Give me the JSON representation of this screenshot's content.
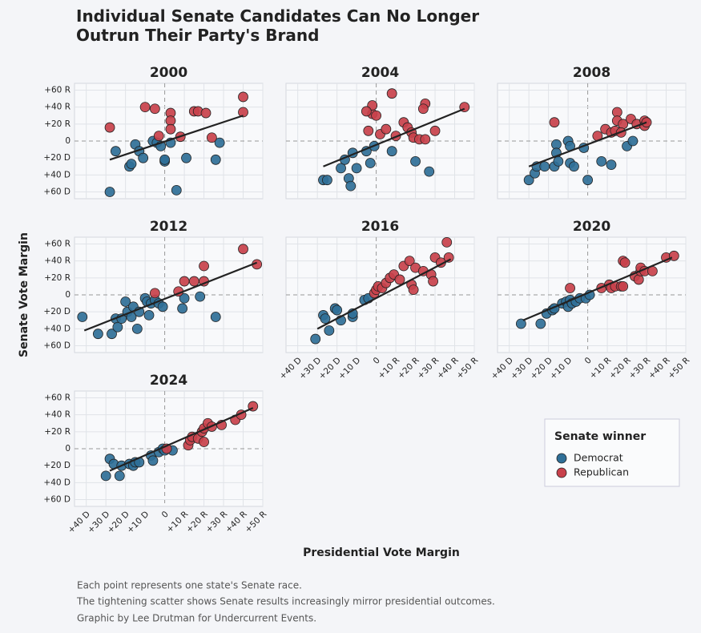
{
  "title": "Individual Senate Candidates Can No Longer Outrun Their Party's Brand",
  "xlabel": "Presidential Vote Margin",
  "ylabel": "Senate Vote Margin",
  "notes": [
    "Each point represents one state's Senate race.",
    "The tightening scatter shows Senate results increasingly mirror presidential outcomes.",
    "Graphic by Lee Drutman for Undercurrent Events."
  ],
  "legend": {
    "title": "Senate winner",
    "entries": [
      {
        "name": "Democrat",
        "color": "#2f6f97"
      },
      {
        "name": "Republican",
        "color": "#c8414b"
      }
    ]
  },
  "axes": {
    "xlim": [
      -46,
      50
    ],
    "ylim": [
      -68,
      68
    ],
    "grid": true,
    "xticks": [
      {
        "value": -40,
        "label": "+40 D"
      },
      {
        "value": -30,
        "label": "+30 D"
      },
      {
        "value": -20,
        "label": "+20 D"
      },
      {
        "value": -10,
        "label": "+10 D"
      },
      0,
      {
        "value": 10,
        "label": "+10 R"
      },
      {
        "value": 20,
        "label": "+20 R"
      },
      {
        "value": 30,
        "label": "+30 R"
      },
      {
        "value": 40,
        "label": "+40 R"
      },
      {
        "value": 50,
        "label": "+50 R"
      }
    ],
    "yticks": [
      {
        "value": 60,
        "label": "+60 R"
      },
      {
        "value": 40,
        "label": "+40 R"
      },
      {
        "value": 20,
        "label": "+20 R"
      },
      0,
      {
        "value": -20,
        "label": "+20 D"
      },
      {
        "value": -40,
        "label": "+40 D"
      },
      {
        "value": -60,
        "label": "+60 D"
      }
    ]
  },
  "chart_data": [
    {
      "type": "scatter",
      "title": "2000",
      "series": [
        {
          "x": [
            -28,
            -25,
            -18,
            -17,
            -15,
            -13,
            -11,
            -6,
            -4,
            -2,
            0,
            0,
            3,
            6,
            11,
            26,
            28
          ],
          "values": [
            -60,
            -12,
            -30,
            -27,
            -4,
            -12,
            -20,
            0,
            -2,
            -6,
            -24,
            -22,
            -2,
            -58,
            -20,
            -22,
            -2
          ]
        },
        {
          "x": [
            -28,
            -10,
            -5,
            -3,
            3,
            3,
            3,
            8,
            15,
            17,
            21,
            24,
            40,
            40
          ],
          "values": [
            16,
            40,
            38,
            6,
            33,
            24,
            14,
            5,
            35,
            35,
            33,
            4,
            52,
            34
          ]
        }
      ],
      "trend": {
        "x": [
          -28,
          40
        ],
        "y": [
          -22,
          30
        ]
      }
    },
    {
      "type": "scatter",
      "title": "2004",
      "series": [
        {
          "x": [
            -27,
            -25,
            -18,
            -16,
            -14,
            -13,
            -12,
            -10,
            -5,
            -3,
            -1,
            8,
            20,
            27
          ],
          "values": [
            -46,
            -46,
            -32,
            -22,
            -44,
            -53,
            -14,
            -32,
            -12,
            -26,
            -6,
            -12,
            -24,
            -36
          ]
        },
        {
          "x": [
            -2,
            -2,
            -4,
            -5,
            0,
            2,
            5,
            8,
            10,
            14,
            16,
            18,
            19,
            22,
            25,
            25,
            24,
            30,
            45
          ],
          "values": [
            32,
            42,
            12,
            35,
            30,
            8,
            14,
            56,
            6,
            22,
            16,
            10,
            4,
            2,
            2,
            44,
            38,
            12,
            40
          ]
        }
      ],
      "trend": {
        "x": [
          -27,
          45
        ],
        "y": [
          -30,
          38
        ]
      }
    },
    {
      "type": "scatter",
      "title": "2008",
      "series": [
        {
          "x": [
            -30,
            -27,
            -26,
            -22,
            -17,
            -16,
            -16,
            -15,
            -10,
            -9,
            -9,
            -7,
            -2,
            0,
            7,
            12,
            20,
            23
          ],
          "values": [
            -46,
            -38,
            -30,
            -30,
            -30,
            -4,
            -14,
            -24,
            0,
            -6,
            -26,
            -30,
            -8,
            -46,
            -24,
            -28,
            -6,
            0
          ]
        },
        {
          "x": [
            -17,
            5,
            9,
            12,
            14,
            15,
            15,
            18,
            17,
            22,
            25,
            29,
            29,
            30
          ],
          "values": [
            22,
            6,
            14,
            10,
            12,
            34,
            24,
            20,
            10,
            26,
            20,
            24,
            18,
            22
          ]
        }
      ],
      "trend": {
        "x": [
          -30,
          30
        ],
        "y": [
          -30,
          22
        ]
      }
    },
    {
      "type": "scatter",
      "title": "2012",
      "series": [
        {
          "x": [
            -42,
            -34,
            -27,
            -25,
            -24,
            -22,
            -20,
            -19,
            -17,
            -16,
            -14,
            -13,
            -10,
            -9,
            -8,
            -7,
            -5,
            -3,
            -1,
            9,
            10,
            18,
            26
          ],
          "values": [
            -26,
            -46,
            -46,
            -28,
            -38,
            -28,
            -8,
            -20,
            -26,
            -14,
            -40,
            -20,
            -4,
            -8,
            -24,
            -10,
            -6,
            -10,
            -14,
            -16,
            -4,
            -2,
            -26
          ]
        },
        {
          "x": [
            -5,
            7,
            10,
            15,
            20,
            20,
            40,
            47
          ],
          "values": [
            2,
            4,
            16,
            16,
            34,
            16,
            54,
            36
          ]
        }
      ],
      "trend": {
        "x": [
          -41,
          47
        ],
        "y": [
          -42,
          38
        ]
      }
    },
    {
      "type": "scatter",
      "title": "2016",
      "series": [
        {
          "x": [
            -31,
            -27,
            -26,
            -24,
            -21,
            -20,
            -18,
            -12,
            -12,
            -6,
            -4
          ],
          "values": [
            -52,
            -24,
            -28,
            -42,
            -16,
            -18,
            -30,
            -26,
            -22,
            -6,
            -4
          ]
        },
        {
          "x": [
            -1,
            0,
            1,
            3,
            5,
            7,
            9,
            12,
            14,
            17,
            18,
            19,
            20,
            24,
            28,
            29,
            30,
            33,
            36,
            37
          ],
          "values": [
            2,
            6,
            10,
            8,
            14,
            20,
            24,
            18,
            34,
            40,
            12,
            6,
            32,
            28,
            24,
            16,
            44,
            38,
            62,
            44
          ]
        }
      ],
      "trend": {
        "x": [
          -30,
          38
        ],
        "y": [
          -40,
          42
        ]
      }
    },
    {
      "type": "scatter",
      "title": "2020",
      "series": [
        {
          "x": [
            -34,
            -24,
            -21,
            -18,
            -17,
            -13,
            -11,
            -10,
            -9,
            -8,
            -6,
            -4,
            -1,
            1
          ],
          "values": [
            -34,
            -34,
            -22,
            -18,
            -16,
            -10,
            -8,
            -14,
            -6,
            -10,
            -8,
            -4,
            -4,
            0
          ]
        },
        {
          "x": [
            -9,
            7,
            11,
            12,
            14,
            17,
            18,
            18,
            19,
            24,
            26,
            27,
            27,
            29,
            33,
            40,
            44
          ],
          "values": [
            8,
            8,
            12,
            8,
            10,
            10,
            10,
            40,
            38,
            22,
            18,
            28,
            32,
            28,
            28,
            44,
            46
          ]
        }
      ],
      "trend": {
        "x": [
          -33,
          43
        ],
        "y": [
          -30,
          44
        ]
      }
    },
    {
      "type": "scatter",
      "title": "2024",
      "series": [
        {
          "x": [
            -30,
            -28,
            -26,
            -23,
            -22,
            -18,
            -16,
            -15,
            -13,
            -7,
            -6,
            -3,
            -1,
            0,
            4
          ],
          "values": [
            -32,
            -12,
            -18,
            -32,
            -20,
            -18,
            -20,
            -16,
            -16,
            -8,
            -14,
            -4,
            0,
            -2,
            -2
          ]
        },
        {
          "x": [
            1,
            12,
            13,
            14,
            17,
            19,
            20,
            20,
            22,
            24,
            29,
            36,
            39,
            45
          ],
          "values": [
            0,
            4,
            10,
            14,
            12,
            20,
            8,
            24,
            30,
            26,
            28,
            34,
            40,
            50
          ]
        }
      ],
      "trend": {
        "x": [
          -28,
          45
        ],
        "y": [
          -26,
          48
        ]
      }
    }
  ]
}
